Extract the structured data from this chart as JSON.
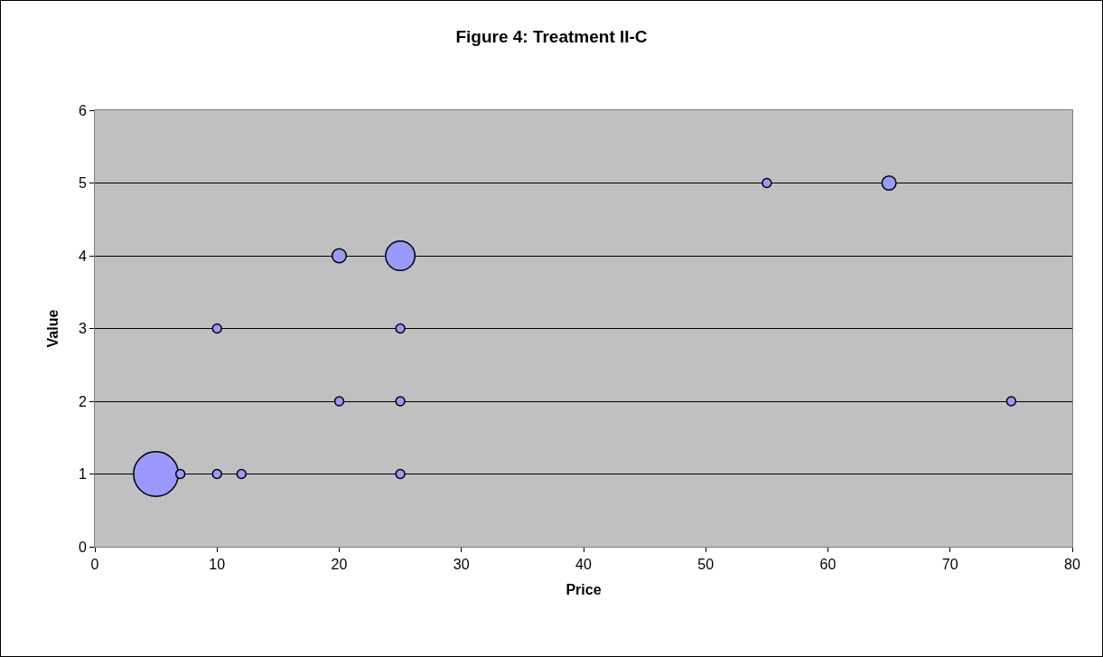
{
  "chart_data": {
    "type": "bubble",
    "title": "Figure 4: Treatment II-C",
    "xlabel": "Price",
    "ylabel": "Value",
    "x": [
      5,
      7,
      10,
      12,
      25,
      20,
      25,
      75,
      10,
      25,
      20,
      25,
      55,
      65
    ],
    "values": [
      1,
      1,
      1,
      1,
      1,
      2,
      2,
      2,
      3,
      3,
      4,
      4,
      5,
      5
    ],
    "sizes": [
      1,
      0.04,
      0.04,
      0.04,
      0.04,
      0.04,
      0.04,
      0.04,
      0.04,
      0.04,
      0.1,
      0.43,
      0.04,
      0.1
    ],
    "color": "#9999ff",
    "xlim": [
      0,
      80
    ],
    "xticks": [
      0,
      10,
      20,
      30,
      40,
      50,
      60,
      70,
      80
    ],
    "ylim": [
      0,
      6
    ],
    "yticks": [
      0,
      1,
      2,
      3,
      4,
      5,
      6
    ],
    "grid": "y"
  }
}
